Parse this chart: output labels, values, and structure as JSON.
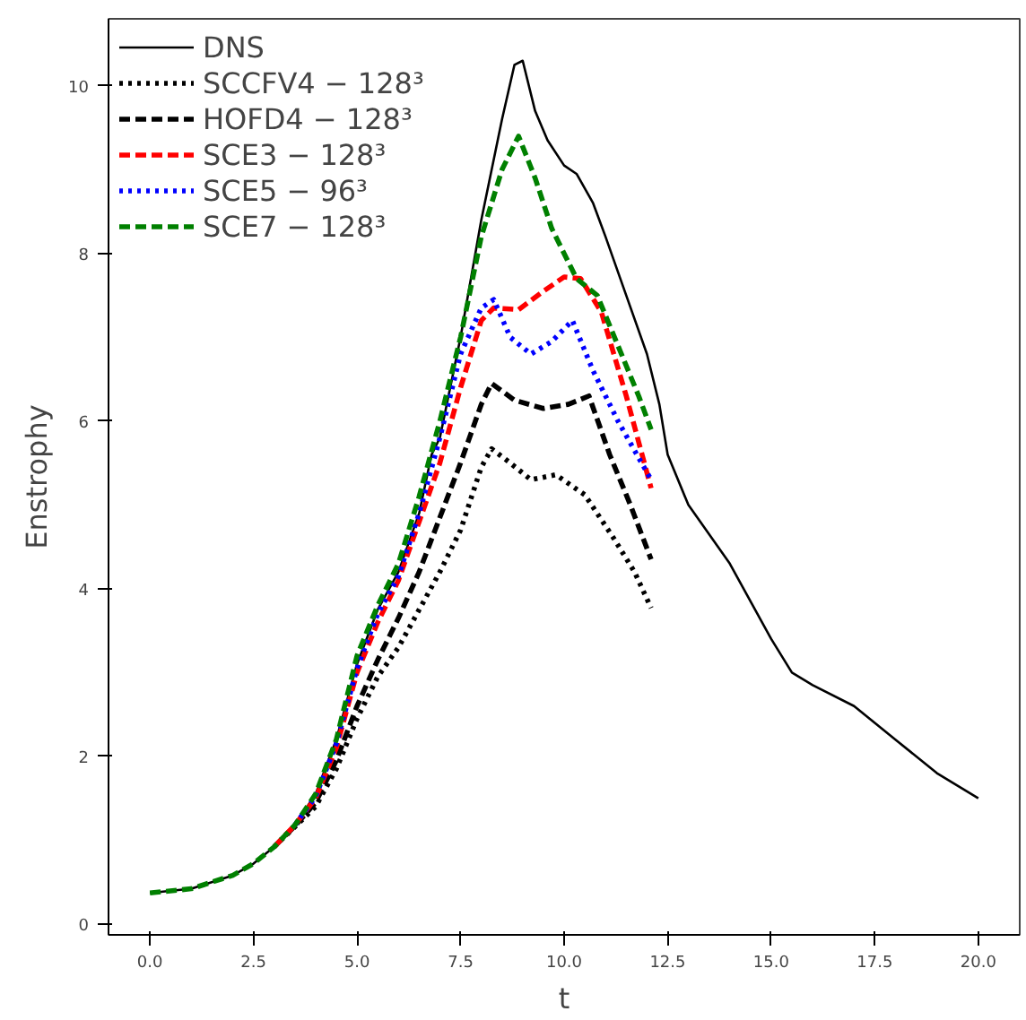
{
  "chart_data": {
    "type": "line",
    "xlabel": "t",
    "ylabel": "Enstrophy",
    "xlim": [
      -1,
      21
    ],
    "ylim": [
      -0.13,
      10.8
    ],
    "xticks": [
      {
        "value": 0,
        "label": "0.0"
      },
      {
        "value": 2.5,
        "label": "2.5"
      },
      {
        "value": 5,
        "label": "5.0"
      },
      {
        "value": 7.5,
        "label": "7.5"
      },
      {
        "value": 10,
        "label": "10.0"
      },
      {
        "value": 12.5,
        "label": "12.5"
      },
      {
        "value": 15,
        "label": "15.0"
      },
      {
        "value": 17.5,
        "label": "17.5"
      },
      {
        "value": 20,
        "label": "20.0"
      }
    ],
    "yticks": [
      0,
      2,
      4,
      6,
      8,
      10
    ],
    "grid": false,
    "legend": "top left",
    "marker": "none",
    "series": [
      {
        "name": "DNS",
        "color": "#000000",
        "line_style": "solid",
        "x": [
          0,
          1,
          2,
          2.5,
          3,
          3.5,
          4,
          4.5,
          5,
          5.5,
          6,
          6.5,
          6.8,
          7,
          7.5,
          8,
          8.5,
          8.8,
          9,
          9.3,
          9.6,
          10,
          10.3,
          10.7,
          11,
          11.5,
          12,
          12.3,
          12.5,
          13,
          14,
          15,
          15.5,
          16,
          17,
          18,
          19,
          20
        ],
        "values": [
          0.37,
          0.42,
          0.58,
          0.72,
          0.92,
          1.18,
          1.55,
          2.2,
          3.1,
          3.75,
          4.2,
          4.9,
          5.6,
          5.8,
          7.0,
          8.4,
          9.6,
          10.25,
          10.3,
          9.7,
          9.35,
          9.05,
          8.95,
          8.6,
          8.2,
          7.5,
          6.8,
          6.2,
          5.6,
          5.0,
          4.3,
          3.4,
          3.0,
          2.85,
          2.6,
          2.2,
          1.8,
          1.5
        ]
      },
      {
        "name": "SCCFV4 − 128³",
        "color": "#000000",
        "line_style": "dotted",
        "x": [
          3,
          3.5,
          4,
          4.5,
          5,
          5.5,
          6,
          6.5,
          7,
          7.5,
          8,
          8.25,
          8.7,
          9.2,
          9.8,
          10.5,
          11.2,
          11.7,
          12.1
        ],
        "values": [
          0.92,
          1.16,
          1.4,
          1.85,
          2.45,
          2.95,
          3.3,
          3.75,
          4.2,
          4.7,
          5.45,
          5.67,
          5.5,
          5.3,
          5.36,
          5.12,
          4.6,
          4.2,
          3.77
        ]
      },
      {
        "name": "HOFD4 − 128³",
        "color": "#000000",
        "line_style": "dashed",
        "x": [
          3,
          3.5,
          4,
          4.5,
          5,
          5.5,
          6,
          6.5,
          7,
          7.5,
          8,
          8.25,
          8.8,
          9.5,
          10.1,
          10.6,
          11.1,
          11.6,
          12.1
        ],
        "values": [
          0.92,
          1.17,
          1.45,
          1.95,
          2.6,
          3.15,
          3.65,
          4.2,
          4.85,
          5.5,
          6.2,
          6.45,
          6.25,
          6.15,
          6.2,
          6.3,
          5.6,
          5.0,
          4.35
        ]
      },
      {
        "name": "SCE3 − 128³",
        "color": "#ff0000",
        "line_style": "dashed",
        "x": [
          3,
          3.5,
          4,
          4.5,
          5,
          5.5,
          6,
          6.5,
          7,
          7.5,
          8,
          8.3,
          8.9,
          9.5,
          10,
          10.4,
          10.9,
          11.5,
          12.1
        ],
        "values": [
          0.92,
          1.18,
          1.5,
          2.1,
          3.0,
          3.6,
          4.1,
          4.8,
          5.5,
          6.4,
          7.2,
          7.35,
          7.33,
          7.55,
          7.72,
          7.7,
          7.3,
          6.3,
          5.2
        ]
      },
      {
        "name": "SCE5 − 96³",
        "color": "#0000ff",
        "line_style": "dotted",
        "x": [
          3.5,
          4,
          4.5,
          5,
          5.5,
          6,
          6.5,
          7,
          7.5,
          8,
          8.3,
          8.7,
          9.2,
          9.7,
          10.2,
          10.7,
          11.3,
          12.1
        ],
        "values": [
          1.18,
          1.52,
          2.15,
          3.05,
          3.7,
          4.15,
          4.9,
          5.8,
          6.8,
          7.35,
          7.45,
          7.0,
          6.8,
          6.95,
          7.2,
          6.6,
          6.0,
          5.3
        ]
      },
      {
        "name": "SCE7 − 128³",
        "color": "#008000",
        "line_style": "dashed",
        "x": [
          0,
          1,
          2,
          2.5,
          3,
          3.5,
          4,
          4.5,
          5,
          5.5,
          6,
          6.5,
          7,
          7.5,
          8,
          8.5,
          8.9,
          9.3,
          9.7,
          10.3,
          10.8,
          11.3,
          11.8,
          12.1
        ],
        "values": [
          0.37,
          0.42,
          0.58,
          0.72,
          0.92,
          1.18,
          1.55,
          2.2,
          3.2,
          3.8,
          4.3,
          5.1,
          6.0,
          7.0,
          8.2,
          9.0,
          9.4,
          8.9,
          8.3,
          7.7,
          7.5,
          6.9,
          6.3,
          5.9
        ]
      }
    ]
  }
}
